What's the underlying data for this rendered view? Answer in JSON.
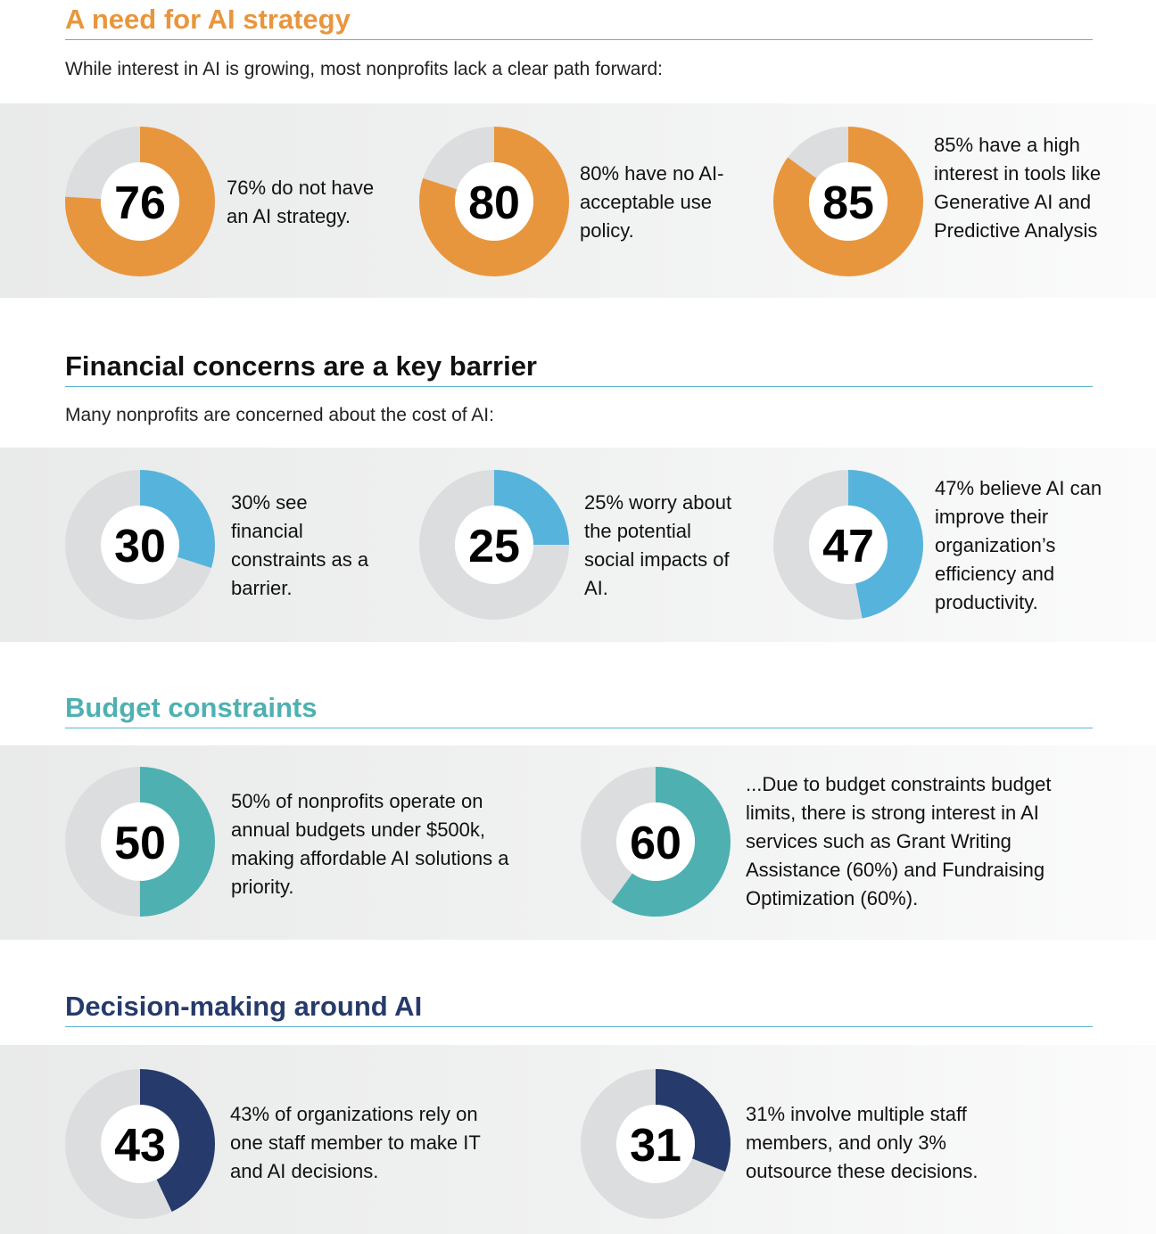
{
  "colors": {
    "orange": "#e8963d",
    "blue": "#56b4dc",
    "teal": "#4fb0b1",
    "navy": "#263b6b",
    "track": "#dcdddf",
    "heading_black": "#111111"
  },
  "sections": [
    {
      "title": "A need for AI strategy",
      "subtitle": "While interest in AI is growing, most nonprofits lack a clear path forward:",
      "stats": [
        {
          "value": 76,
          "label": "76",
          "text": "76% do not have an AI strategy."
        },
        {
          "value": 80,
          "label": "80",
          "text": "80% have no AI-acceptable use policy."
        },
        {
          "value": 85,
          "label": "85",
          "text": "85% have a high interest in tools like Generative AI and Predictive Analysis"
        }
      ]
    },
    {
      "title": "Financial concerns are a key barrier",
      "subtitle": "Many nonprofits are concerned about the cost of AI:",
      "stats": [
        {
          "value": 30,
          "label": "30",
          "text": "30% see financial constraints as a barrier."
        },
        {
          "value": 25,
          "label": "25",
          "text": "25% worry about the potential social impacts of AI."
        },
        {
          "value": 47,
          "label": "47",
          "text": "47% believe AI can improve their organization’s efficiency and productivity."
        }
      ]
    },
    {
      "title": "Budget constraints",
      "stats": [
        {
          "value": 50,
          "label": "50",
          "text": "50% of nonprofits operate on annual budgets under $500k, making affordable AI solutions a priority."
        },
        {
          "value": 60,
          "label": "60",
          "text": "...Due to budget constraints budget limits, there is strong interest in AI services such as Grant Writing Assistance (60%) and Fundraising Optimization (60%)."
        }
      ]
    },
    {
      "title": "Decision-making around AI",
      "stats": [
        {
          "value": 43,
          "label": "43",
          "text": "43% of organizations rely on one staff member to make IT and AI decisions."
        },
        {
          "value": 31,
          "label": "31",
          "text": "31% involve multiple staff members, and only 3% outsource these decisions."
        }
      ]
    }
  ],
  "chart_data": [
    {
      "type": "pie",
      "title": "A need for AI strategy",
      "categories": [
        "No AI strategy",
        "AI-acceptable use policy lacking",
        "High interest in Generative AI / Predictive Analysis"
      ],
      "values": [
        76,
        80,
        85
      ],
      "unit": "%"
    },
    {
      "type": "pie",
      "title": "Financial concerns are a key barrier",
      "categories": [
        "Financial constraints as a barrier",
        "Worry about social impacts",
        "AI can improve efficiency"
      ],
      "values": [
        30,
        25,
        47
      ],
      "unit": "%"
    },
    {
      "type": "pie",
      "title": "Budget constraints",
      "categories": [
        "Budgets under $500k",
        "Interest in Grant Writing / Fundraising AI"
      ],
      "values": [
        50,
        60
      ],
      "unit": "%"
    },
    {
      "type": "pie",
      "title": "Decision-making around AI",
      "categories": [
        "One staff member decides",
        "Multiple staff members involved"
      ],
      "values": [
        43,
        31
      ],
      "unit": "%"
    }
  ]
}
